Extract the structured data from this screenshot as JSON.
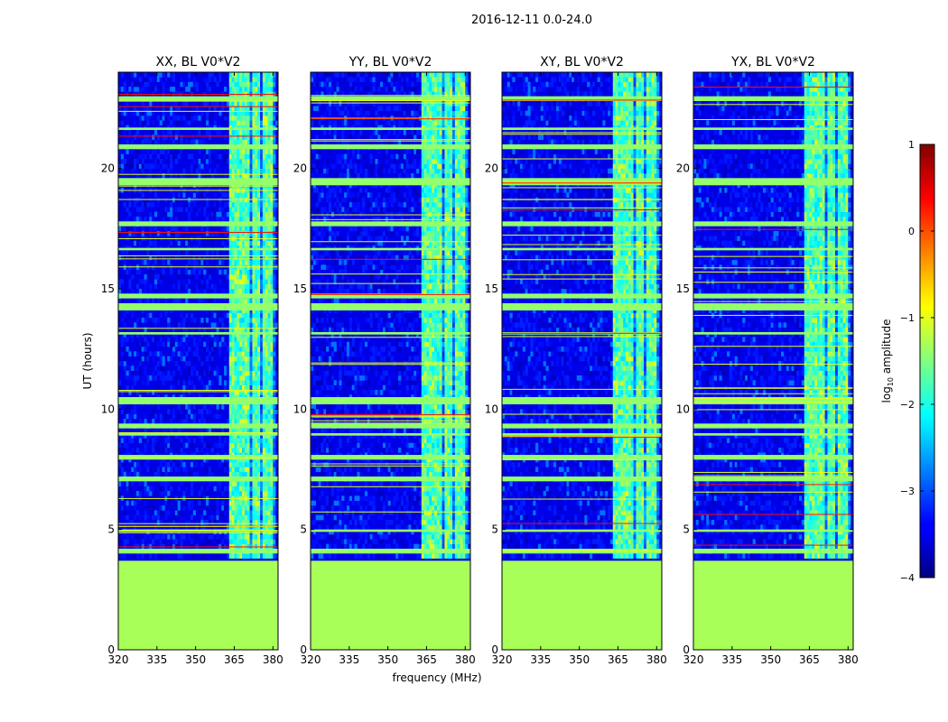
{
  "figure_title": "2016-12-11 0.0-24.0",
  "chart_data": {
    "type": "heatmap",
    "xlabel": "frequency (MHz)",
    "ylabel": "UT (hours)",
    "xlim": [
      320,
      382
    ],
    "ylim": [
      0,
      24
    ],
    "x_ticks": [
      320,
      335,
      350,
      365,
      380
    ],
    "y_ticks": [
      0,
      5,
      10,
      15,
      20
    ],
    "panels": [
      {
        "title": "XX, BL V0*V2"
      },
      {
        "title": "YY, BL V0*V2"
      },
      {
        "title": "XY, BL V0*V2"
      },
      {
        "title": "YX, BL V0*V2"
      }
    ],
    "colorbar": {
      "label": "log",
      "label_sub": "10",
      "label_rest": " amplitude",
      "range": [
        -4,
        1
      ],
      "ticks": [
        -4,
        -3,
        -2,
        -1,
        0,
        1
      ],
      "tick_labels": [
        "−4",
        "−3",
        "−2",
        "−1",
        "0",
        "1"
      ],
      "colormap": "jet"
    },
    "regions": {
      "no_data_until_hours": 3.7,
      "no_data_value": -1.3,
      "background_value": -3.5,
      "rfi_band_mhz": [
        363,
        380
      ],
      "rfi_strips_mhz": [
        [
          363,
          366.5
        ],
        [
          367.5,
          371
        ],
        [
          372,
          375
        ],
        [
          376,
          379.5
        ]
      ],
      "broadband_events_hours": [
        [
          4.0,
          4.2
        ],
        [
          4.9,
          5.0
        ],
        [
          7.0,
          7.2
        ],
        [
          7.9,
          8.1
        ],
        [
          8.9,
          9.0
        ],
        [
          9.2,
          9.4
        ],
        [
          10.2,
          10.5
        ],
        [
          13.1,
          13.2
        ],
        [
          14.1,
          14.4
        ],
        [
          14.6,
          14.8
        ],
        [
          16.6,
          16.7
        ],
        [
          17.6,
          17.8
        ],
        [
          19.3,
          19.6
        ],
        [
          20.8,
          21.0
        ],
        [
          21.6,
          21.7
        ],
        [
          22.8,
          23.0
        ]
      ]
    }
  }
}
